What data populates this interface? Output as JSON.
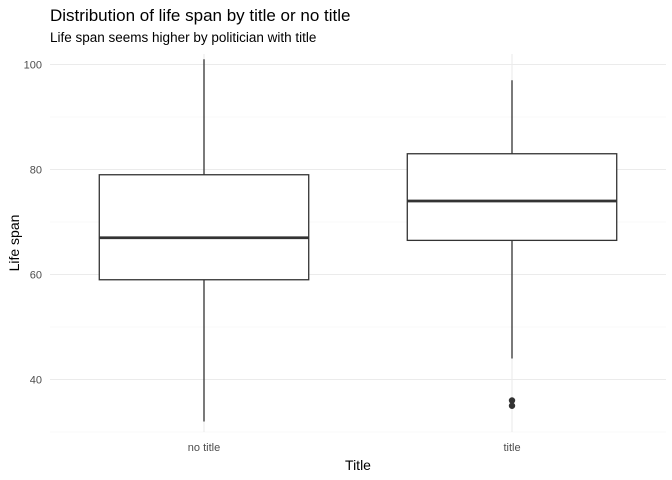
{
  "chart_data": {
    "type": "box",
    "title": "Distribution of life span by title or no title",
    "subtitle": "Life span seems higher by politician with title",
    "xlabel": "Title",
    "ylabel": "Life span",
    "categories": [
      "no title",
      "title"
    ],
    "ylim": [
      30,
      102
    ],
    "yticks": [
      40,
      60,
      80,
      100
    ],
    "boxes": [
      {
        "category": "no title",
        "min": 32,
        "q1": 59,
        "median": 67,
        "q3": 79,
        "max": 101,
        "outliers": []
      },
      {
        "category": "title",
        "min": 44,
        "q1": 66.5,
        "median": 74,
        "q3": 83,
        "max": 97,
        "outliers": [
          35,
          36
        ]
      }
    ],
    "grid": true,
    "legend": "none"
  }
}
